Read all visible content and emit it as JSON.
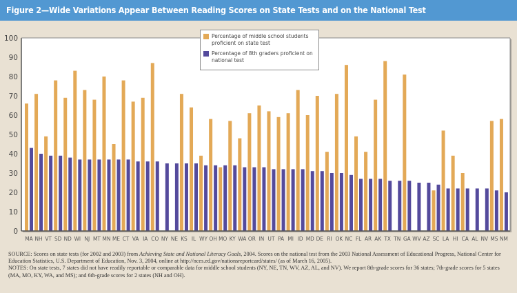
{
  "header": {
    "title": "Figure 2—Wide Variations Appear Between Reading Scores on State Tests and on the National Test"
  },
  "colors": {
    "title_bar": "#5298d2",
    "state_test": "#e3a957",
    "national_test": "#544a9c",
    "background": "#e9e1d3"
  },
  "chart_data": {
    "type": "bar",
    "title": "Figure 2—Wide Variations Appear Between Reading Scores on State Tests and on the National Test",
    "xlabel": "",
    "ylabel": "",
    "ylim": [
      0,
      100
    ],
    "yticks": [
      0,
      10,
      20,
      30,
      40,
      50,
      60,
      70,
      80,
      90,
      100
    ],
    "grid": false,
    "legend_position": "top-center",
    "categories": [
      "MA",
      "NH",
      "VT",
      "SD",
      "ND",
      "WI",
      "NJ",
      "MT",
      "MN",
      "ME",
      "CT",
      "VA",
      "IA",
      "CO",
      "NY",
      "NE",
      "KS",
      "IL",
      "WY",
      "OH",
      "MO",
      "KY",
      "WA",
      "OR",
      "IN",
      "UT",
      "PA",
      "MI",
      "ID",
      "MD",
      "DE",
      "RI",
      "OK",
      "NC",
      "FL",
      "AR",
      "AK",
      "TX",
      "TN",
      "GA",
      "WV",
      "AZ",
      "SC",
      "LA",
      "HI",
      "CA",
      "AL",
      "NV",
      "MS",
      "NM"
    ],
    "series": [
      {
        "name": "Percentage of middle school students proficient on state test",
        "color": "#e3a957",
        "values": [
          66,
          71,
          49,
          78,
          69,
          83,
          73,
          68,
          80,
          45,
          78,
          67,
          69,
          87,
          null,
          null,
          71,
          64,
          39,
          58,
          33,
          57,
          48,
          61,
          65,
          62,
          59,
          61,
          73,
          60,
          70,
          41,
          71,
          86,
          49,
          41,
          68,
          88,
          null,
          81,
          null,
          null,
          21,
          52,
          39,
          30,
          null,
          null,
          57,
          58
        ]
      },
      {
        "name": "Percentage of 8th graders proficient on national test",
        "color": "#544a9c",
        "values": [
          43,
          40,
          39,
          39,
          38,
          37,
          37,
          37,
          37,
          37,
          37,
          36,
          36,
          36,
          35,
          35,
          35,
          35,
          34,
          34,
          34,
          34,
          33,
          33,
          33,
          32,
          32,
          32,
          32,
          31,
          31,
          30,
          30,
          29,
          27,
          27,
          27,
          26,
          26,
          26,
          25,
          25,
          24,
          22,
          22,
          22,
          22,
          22,
          21,
          20
        ]
      }
    ]
  },
  "legend": {
    "items": [
      {
        "label": "Percentage of middle school students proficient on state test"
      },
      {
        "label": "Percentage of 8th graders proficient on national test"
      }
    ]
  },
  "footnote": {
    "source_prefix": "SOURCE: Scores on state tests (for 2002 and 2003) from ",
    "source_title": "Achieving State and National Literacy Goals",
    "source_suffix": ", 2004. Scores on the national test from the 2003 National Assessment of Educational Progress, National Center for Education Statistics, U.S. Department of Education, Nov. 3, 2004, online at http://nces.ed.gov/nationsreportcard/states/ (as of March 16, 2005).",
    "notes": "NOTES: On state tests, 7 states did not have readily reportable or comparable data for middle school students (NY, NE, TN, WV, AZ, AL, and NV). We report 8th-grade scores for 36 states; 7th-grade scores for 5 states (MA, MO, KY, WA, and MS); and 6th-grade scores for 2 states (NH and OH)."
  }
}
